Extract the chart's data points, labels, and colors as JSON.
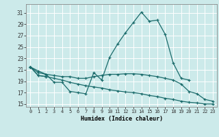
{
  "title": "",
  "xlabel": "Humidex (Indice chaleur)",
  "bg_color": "#cceaea",
  "line_color": "#1a6b6b",
  "grid_color": "#ffffff",
  "xlim": [
    -0.5,
    23.5
  ],
  "ylim": [
    14.5,
    32.5
  ],
  "yticks": [
    15,
    17,
    19,
    21,
    23,
    25,
    27,
    29,
    31
  ],
  "xticks": [
    0,
    1,
    2,
    3,
    4,
    5,
    6,
    7,
    8,
    9,
    10,
    11,
    12,
    13,
    14,
    15,
    16,
    17,
    18,
    19,
    20,
    21,
    22,
    23
  ],
  "lines": [
    {
      "x": [
        0,
        1,
        2,
        3,
        4,
        5,
        6,
        7,
        8,
        9,
        10,
        11,
        12,
        13,
        14,
        15,
        16,
        17,
        18,
        19,
        20
      ],
      "y": [
        21.5,
        20.8,
        20.2,
        18.8,
        18.8,
        17.2,
        17.0,
        16.8,
        20.5,
        19.2,
        23.2,
        25.5,
        27.5,
        29.3,
        31.1,
        29.5,
        29.7,
        27.2,
        22.2,
        19.5,
        19.2
      ]
    },
    {
      "x": [
        0,
        1,
        2
      ],
      "y": [
        21.5,
        20.0,
        19.8
      ]
    },
    {
      "x": [
        0,
        1,
        2,
        3,
        4,
        5,
        6,
        7,
        8,
        9,
        10,
        11,
        12,
        13,
        14,
        15,
        16,
        17,
        18,
        19,
        20,
        21,
        22,
        23
      ],
      "y": [
        21.5,
        20.0,
        19.8,
        19.5,
        19.2,
        18.8,
        18.5,
        18.2,
        18.0,
        17.8,
        17.5,
        17.3,
        17.1,
        17.0,
        16.8,
        16.5,
        16.3,
        16.0,
        15.8,
        15.5,
        15.3,
        15.2,
        15.0,
        15.0
      ]
    },
    {
      "x": [
        0,
        1,
        2,
        3,
        4,
        5,
        6,
        7,
        8,
        9,
        10,
        11,
        12,
        13,
        14,
        15,
        16,
        17,
        18,
        19,
        20,
        21,
        22,
        23
      ],
      "y": [
        21.5,
        20.5,
        20.2,
        20.0,
        19.8,
        19.8,
        19.5,
        19.5,
        19.8,
        20.0,
        20.2,
        20.2,
        20.3,
        20.3,
        20.2,
        20.0,
        19.8,
        19.5,
        19.2,
        18.5,
        17.2,
        16.8,
        15.8,
        15.5
      ]
    }
  ]
}
